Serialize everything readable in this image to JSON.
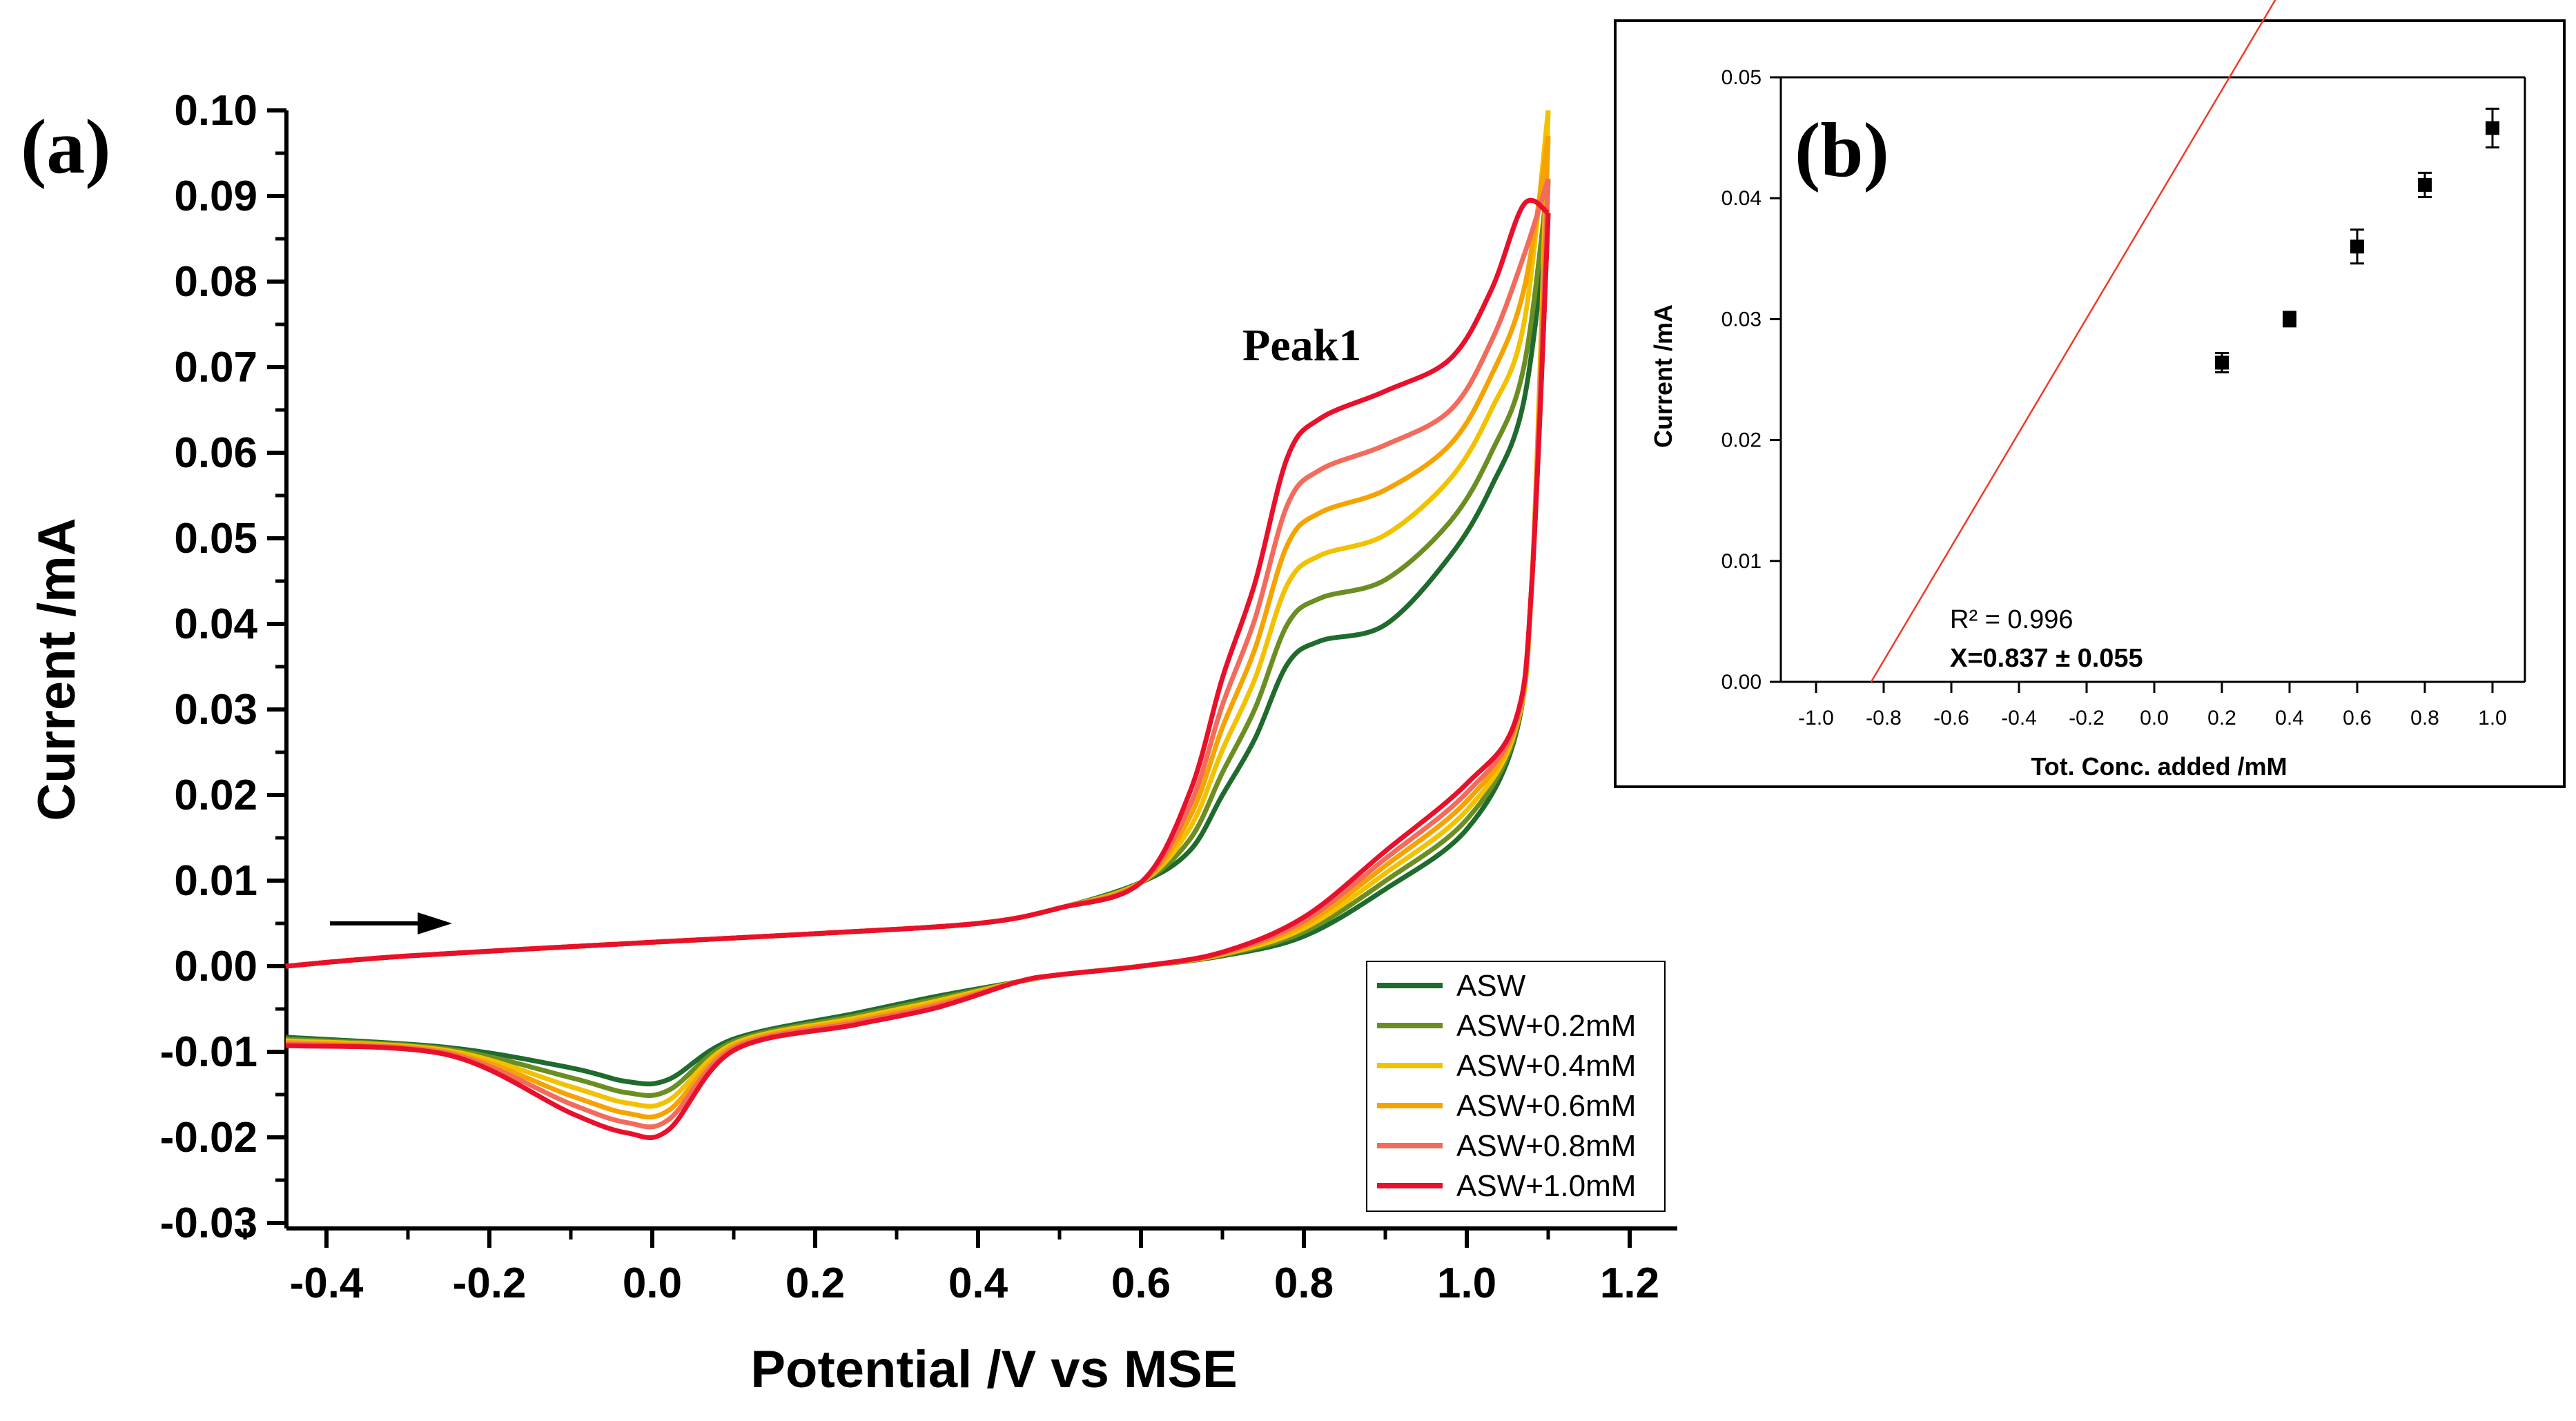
{
  "chart_data": [
    {
      "panel_label": "(a)",
      "type": "line",
      "title": "",
      "xlabel": "Potential /V vs MSE",
      "ylabel": "Current /mA",
      "xlim": [
        -0.5,
        1.2
      ],
      "ylim": [
        -0.03,
        0.1
      ],
      "x_ticks": [
        "-0.4",
        "-0.2",
        "0.0",
        "0.2",
        "0.4",
        "0.6",
        "0.8",
        "1.0",
        "1.2"
      ],
      "y_ticks": [
        "-0.03",
        "-0.02",
        "-0.01",
        "0.00",
        "0.01",
        "0.02",
        "0.03",
        "0.04",
        "0.05",
        "0.06",
        "0.07",
        "0.08",
        "0.09",
        "0.10"
      ],
      "annotation": "Peak1",
      "legend_position": "bottom-right",
      "series": [
        {
          "name": "ASW",
          "color": "#1f6b2e",
          "plateau": 0.038,
          "flat": 0.048,
          "cath_peak": -0.0135,
          "vertex": 0.088
        },
        {
          "name": "ASW+0.2mM",
          "color": "#6b8e23",
          "plateau": 0.043,
          "flat": 0.052,
          "cath_peak": -0.0148,
          "vertex": 0.092
        },
        {
          "name": "ASW+0.4mM",
          "color": "#f2c200",
          "plateau": 0.048,
          "flat": 0.057,
          "cath_peak": -0.016,
          "vertex": 0.1
        },
        {
          "name": "ASW+0.6mM",
          "color": "#f5a300",
          "plateau": 0.053,
          "flat": 0.061,
          "cath_peak": -0.0172,
          "vertex": 0.097
        },
        {
          "name": "ASW+0.8mM",
          "color": "#f26b5b",
          "plateau": 0.058,
          "flat": 0.065,
          "cath_peak": -0.0183,
          "vertex": 0.092
        },
        {
          "name": "ASW+1.0mM",
          "color": "#e8102a",
          "plateau": 0.064,
          "flat": 0.071,
          "cath_peak": -0.0195,
          "vertex": 0.088
        }
      ]
    },
    {
      "panel_label": "(b)",
      "type": "scatter",
      "xlabel": "Tot. Conc. added /mM",
      "ylabel": "Current /mA",
      "xlim": [
        -1.1,
        1.1
      ],
      "ylim": [
        0,
        0.05
      ],
      "x_ticks": [
        "-1.0",
        "-0.8",
        "-0.6",
        "-0.4",
        "-0.2",
        "0.0",
        "0.2",
        "0.4",
        "0.6",
        "0.8",
        "1.0"
      ],
      "y_ticks": [
        "0.00",
        "0.01",
        "0.02",
        "0.03",
        "0.04",
        "0.05"
      ],
      "x": [
        0.2,
        0.4,
        0.6,
        0.8,
        1.0
      ],
      "y": [
        0.0264,
        0.03,
        0.036,
        0.0411,
        0.0458
      ],
      "error": [
        0.0008,
        0.0006,
        0.0014,
        0.001,
        0.0016
      ],
      "fit": {
        "x_intercept": -0.837,
        "slope": 0.0472,
        "color": "#f03a2a"
      },
      "r2_label": "R² = 0.996",
      "x_label_result": "X=0.837 ± 0.055"
    }
  ]
}
